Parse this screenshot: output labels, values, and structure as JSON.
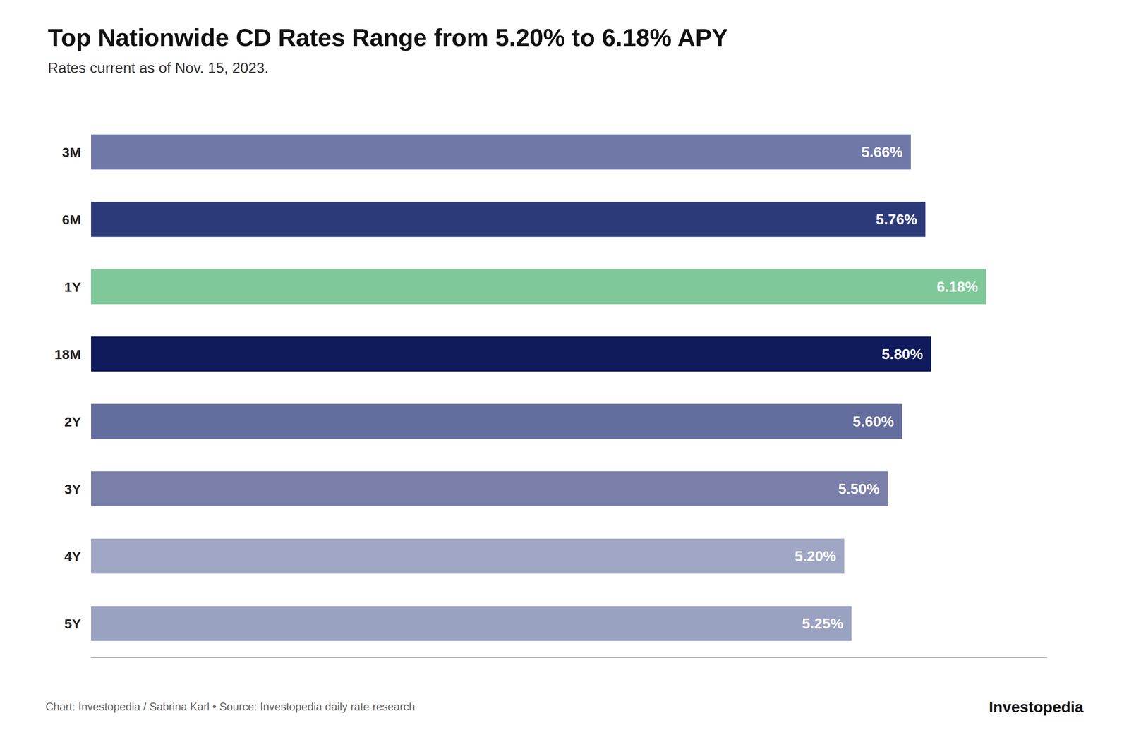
{
  "chart_data": {
    "type": "bar",
    "orientation": "horizontal",
    "title": "Top Nationwide CD Rates Range from 5.20% to 6.18% APY",
    "subtitle": "Rates current as of Nov. 15, 2023.",
    "categories": [
      "3M",
      "6M",
      "1Y",
      "18M",
      "2Y",
      "3Y",
      "4Y",
      "5Y"
    ],
    "values": [
      5.66,
      5.76,
      6.18,
      5.8,
      5.6,
      5.5,
      5.2,
      5.25
    ],
    "value_labels": [
      "5.66%",
      "5.76%",
      "6.18%",
      "5.80%",
      "5.60%",
      "5.50%",
      "5.20%",
      "5.25%"
    ],
    "colors": [
      "#7078a8",
      "#2d3a7a",
      "#7ec89a",
      "#0e1a5c",
      "#636d9e",
      "#7a7faa",
      "#9fa7c5",
      "#9aa2c2"
    ],
    "xlim": [
      0,
      6.6
    ],
    "data_labels": true,
    "tick_labels": "y",
    "grid": false,
    "annotations": [
      "Chart: Investopedia / Sabrina Karl • Source: Investopedia daily rate research",
      "Investopedia"
    ]
  }
}
